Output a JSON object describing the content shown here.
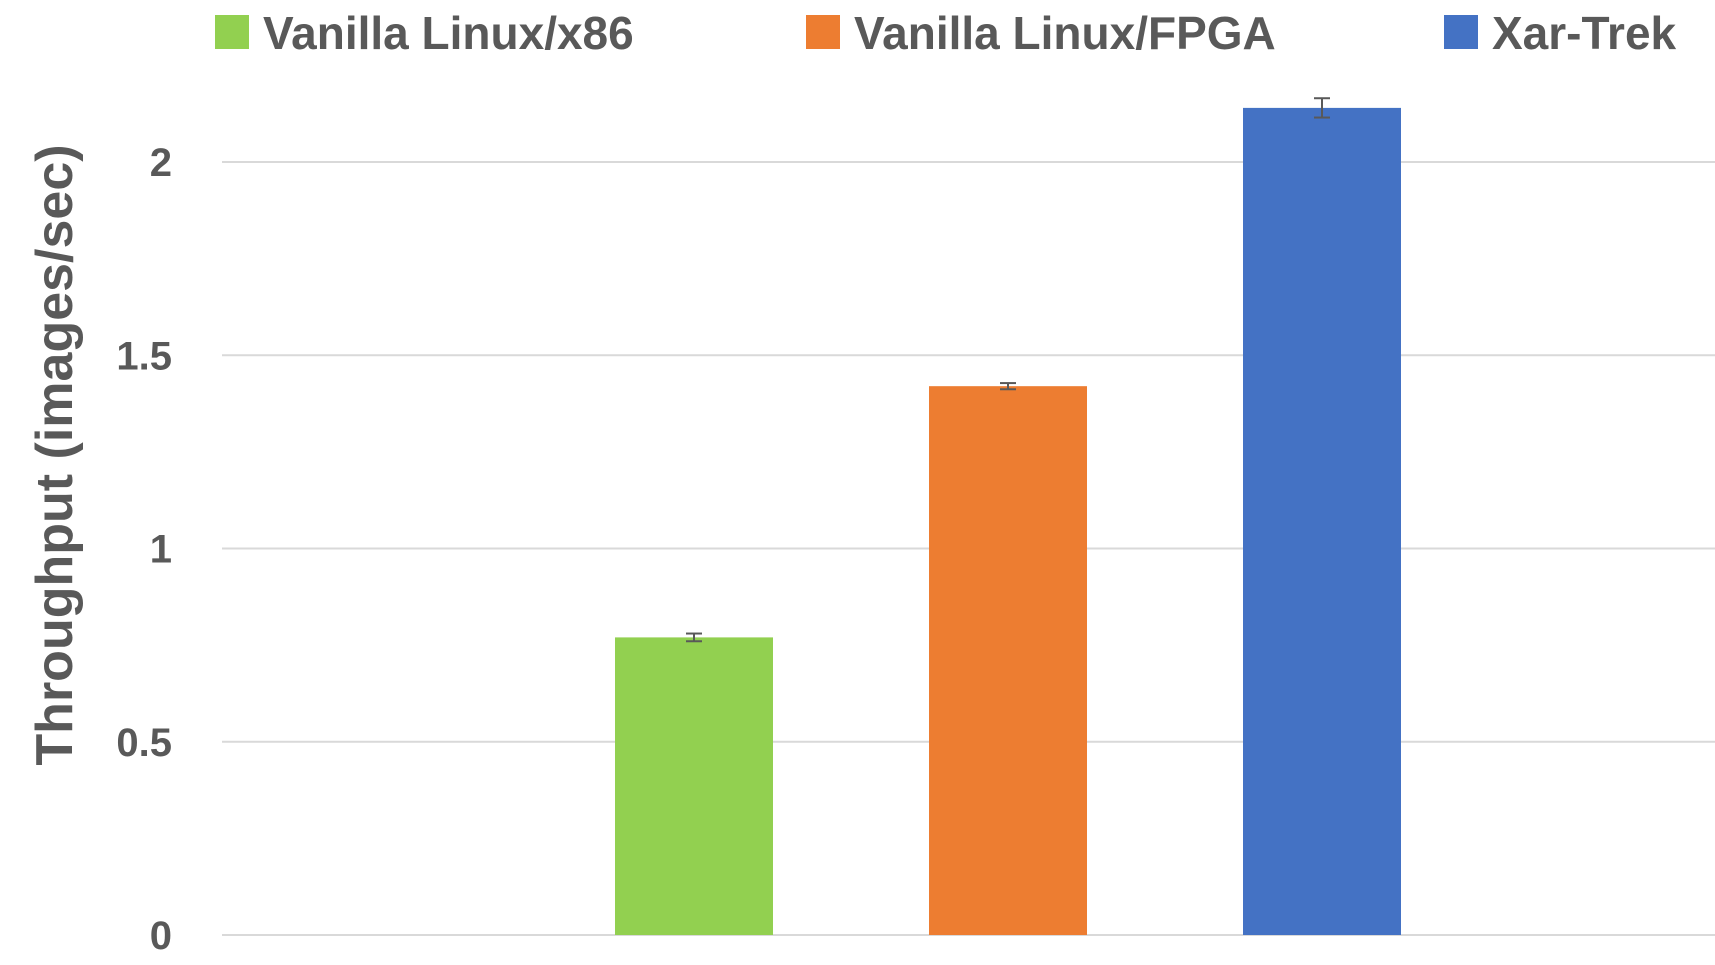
{
  "chart_data": {
    "type": "bar",
    "title": "",
    "xlabel": "",
    "ylabel": "Throughput (images/sec)",
    "ylim": [
      0,
      2.2
    ],
    "yticks": [
      0,
      0.5,
      1,
      1.5,
      2
    ],
    "ytick_labels": [
      "0",
      "0.5",
      "1",
      "1.5",
      "2"
    ],
    "grid": true,
    "legend_position": "top",
    "series": [
      {
        "name": "Vanilla Linux/x86",
        "value": 0.77,
        "error": 0.01,
        "color": "#92d050"
      },
      {
        "name": "Vanilla Linux/FPGA",
        "value": 1.42,
        "error": 0.008,
        "color": "#ed7d31"
      },
      {
        "name": "Xar-Trek",
        "value": 2.14,
        "error": 0.025,
        "color": "#4472c4"
      }
    ]
  }
}
